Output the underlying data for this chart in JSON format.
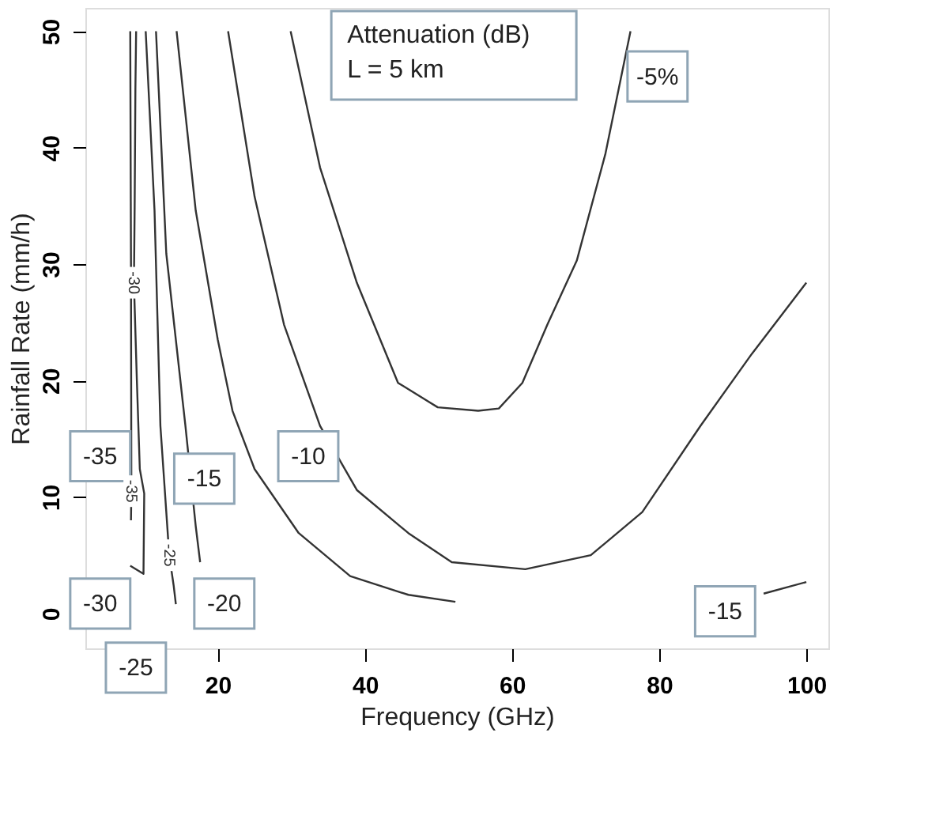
{
  "chart_data": {
    "type": "line",
    "xlabel": "Frequency (GHz)",
    "ylabel": "Rainfall  Rate    (mm/h)",
    "xlim": [
      2,
      103
    ],
    "ylim": [
      -3,
      52
    ],
    "xticks": [
      20,
      40,
      60,
      80,
      100
    ],
    "yticks": [
      0,
      10,
      20,
      30,
      40,
      50
    ],
    "grid": false,
    "marker": "none",
    "line_style": "solid",
    "series": [
      {
        "name": "-35",
        "color": "#333333",
        "x": [
          8.1,
          8.2,
          8.25,
          8.2
        ],
        "values": [
          50,
          30,
          10.5,
          8
        ]
      },
      {
        "name": "-30",
        "color": "#333333",
        "x": [
          8.9,
          8.8,
          8.75,
          8.7,
          8.65,
          8.6,
          9.0,
          9.4,
          10.0,
          9.9,
          8.1
        ],
        "values": [
          50,
          45,
          40,
          35,
          31.5,
          28.4,
          20,
          12.4,
          10.3,
          3.4,
          4.1
        ]
      },
      {
        "name": "-25",
        "color": "#333333",
        "x": [
          10.2,
          11.4,
          12.2,
          13.4,
          14.0,
          14.3
        ],
        "values": [
          50,
          34.6,
          16.1,
          5.0,
          2.4,
          0.8
        ]
      },
      {
        "color": "#333333",
        "x": [
          11.6,
          13.0,
          15.6,
          17.0,
          17.6
        ],
        "values": [
          50,
          30.9,
          16.1,
          7.5,
          4.4
        ]
      },
      {
        "color": "#333333",
        "x": [
          14.4,
          17.0,
          20.0,
          22.0,
          25.0,
          31.0,
          38.0,
          45.9,
          52.3
        ],
        "values": [
          50,
          34.6,
          23.5,
          17.4,
          12.4,
          6.9,
          3.2,
          1.6,
          1.0
        ]
      },
      {
        "color": "#333333",
        "x": [
          94.2,
          100
        ],
        "values": [
          1.7,
          2.7
        ]
      },
      {
        "color": "#333333",
        "x": [
          21.4,
          25.0,
          29.0,
          33.9,
          38.9,
          45.9,
          51.8,
          61.8,
          70.7,
          77.7,
          85.6,
          92.6,
          100
        ],
        "values": [
          50,
          35.8,
          24.8,
          16.1,
          10.6,
          6.9,
          4.4,
          3.8,
          5.0,
          8.7,
          16.1,
          22.3,
          28.4
        ]
      },
      {
        "color": "#333333",
        "x": [
          29.9,
          33.9,
          38.9,
          44.5,
          49.9,
          55.4,
          58.2,
          61.4,
          64.8,
          68.8,
          72.7,
          76.1
        ],
        "values": [
          50,
          38.3,
          28.4,
          19.8,
          17.7,
          17.4,
          17.6,
          19.8,
          24.8,
          30.3,
          39.5,
          50
        ]
      }
    ],
    "annotations": [
      "Attenuation (dB)\nL = 5 km",
      "-35",
      "-30",
      "-25",
      "-15",
      "-10",
      "-20",
      "-5%",
      "-15"
    ]
  }
}
